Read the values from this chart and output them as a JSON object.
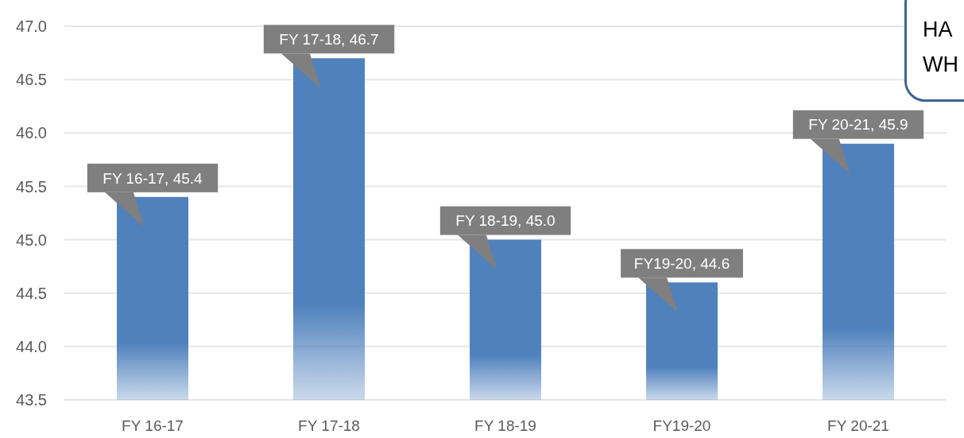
{
  "chart_data": {
    "type": "bar",
    "categories": [
      "FY 16-17",
      "FY 17-18",
      "FY 18-19",
      "FY19-20",
      "FY 20-21"
    ],
    "values": [
      45.4,
      46.7,
      45.0,
      44.6,
      45.9
    ],
    "color": "#4f81bd",
    "value_labels": [
      "FY 16-17, 45.4",
      "FY 17-18, 46.7",
      "FY 18-19, 45.0",
      "FY19-20, 44.6",
      "FY 20-21, 45.9"
    ],
    "ylim": [
      43.5,
      47
    ],
    "yticks": [
      43.5,
      {
        "value": 44,
        "label": "44.0"
      },
      44.5,
      {
        "value": 45,
        "label": "45.0"
      },
      45.5,
      {
        "value": 46,
        "label": "46.0"
      },
      46.5,
      {
        "value": 47,
        "label": "47.0"
      }
    ],
    "grid": "y",
    "annotations": [
      "HA",
      "WH"
    ]
  }
}
